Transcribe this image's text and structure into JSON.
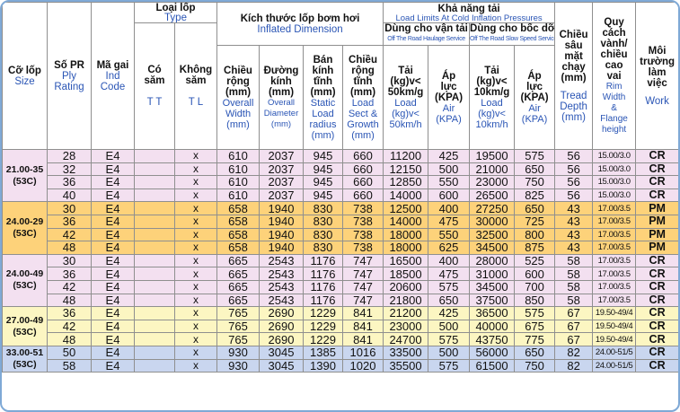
{
  "header": {
    "size": {
      "vi": "Cỡ lốp",
      "en": "Size"
    },
    "ply": {
      "vi": "Số PR",
      "en1": "Ply",
      "en2": "Rating"
    },
    "ind": {
      "vi": "Mã gai",
      "en1": "Ind",
      "en2": "Code"
    },
    "type": {
      "vi": "Loại lốp",
      "en": "Type"
    },
    "tube": {
      "vi1": "Có",
      "vi2": "săm",
      "en": "T T"
    },
    "tubeless": {
      "vi1": "Không",
      "vi2": "săm",
      "en": "T L"
    },
    "dimension": {
      "vi": "Kích thước lốp bơm hơi",
      "en": "Inflated Dimension"
    },
    "width": {
      "vi1": "Chiều",
      "vi2": "rộng",
      "unit": "(mm)",
      "en1": "Overall",
      "en2": "Width",
      "en3": "(mm)"
    },
    "diameter": {
      "vi1": "Đường",
      "vi2": "kính",
      "unit": "(mm)",
      "en1": "Overall",
      "en2": "Diameter",
      "en3": "(mm)"
    },
    "radius": {
      "vi1": "Bán",
      "vi2": "kính",
      "vi3": "tĩnh",
      "unit": "(mm)",
      "en1": "Static",
      "en2": "Load",
      "en3": "radius",
      "en4": "(mm)"
    },
    "growth": {
      "vi1": "Chiều",
      "vi2": "rộng",
      "vi3": "tĩnh",
      "unit": "(mm)",
      "en1": "Load",
      "en2": "Sect &",
      "en3": "Growth",
      "en4": "(mm)"
    },
    "capacity": {
      "vi": "Khả năng tải",
      "en": "Load Limits At Cold Inflation Pressures"
    },
    "haulage": {
      "vi": "Dùng cho vận tải",
      "en": "Off The Road Haulage Service"
    },
    "slow": {
      "vi": "Dùng cho bốc dỡ",
      "en": "Off The Road Slow Speed Service"
    },
    "load_h": {
      "vi1": "Tải",
      "vi2": "(kg)v<",
      "vi3": "50km/g",
      "en1": "Load",
      "en2": "(kg)v<",
      "en3": "50km/h"
    },
    "air_h": {
      "vi1": "Áp",
      "vi2": "lực",
      "vi3": "(KPA)",
      "en1": "Air",
      "en2": "(KPA)"
    },
    "load_s": {
      "vi1": "Tải",
      "vi2": "(kg)v<",
      "vi3": "10km/g",
      "en1": "Load",
      "en2": "(kg)v<",
      "en3": "10km/h"
    },
    "air_s": {
      "vi1": "Áp",
      "vi2": "lực",
      "vi3": "(KPA)",
      "en1": "Air",
      "en2": "(KPA)"
    },
    "tread": {
      "vi1": "Chiều",
      "vi2": "sâu",
      "vi3": "mặt",
      "vi4": "chạy",
      "unit": "(mm)",
      "en1": "Tread",
      "en2": "Depth",
      "en3": "(mm)"
    },
    "rim": {
      "vi1": "Quy",
      "vi2": "cách",
      "vi3": "vành/",
      "vi4": "chiều",
      "vi5": "cao",
      "vi6": "vai",
      "en1": "Rim",
      "en2": "Width",
      "en3": "&",
      "en4": "Flange",
      "en5": "height"
    },
    "work": {
      "vi1": "Môi",
      "vi2": "trường",
      "vi3": "làm",
      "vi4": "việc",
      "en": "Work"
    }
  },
  "groups": [
    {
      "size": "21.00-35",
      "code": "(53C)",
      "color": "#f3e0f0",
      "rows": [
        {
          "pr": "28",
          "ind": "E4",
          "tl": "x",
          "w": "610",
          "d": "2037",
          "r": "945",
          "g": "660",
          "lh": "11200",
          "ah": "425",
          "ls": "19500",
          "as": "575",
          "tread": "56",
          "rim": "15.00/3.0",
          "work": "CR"
        },
        {
          "pr": "32",
          "ind": "E4",
          "tl": "x",
          "w": "610",
          "d": "2037",
          "r": "945",
          "g": "660",
          "lh": "12150",
          "ah": "500",
          "ls": "21000",
          "as": "650",
          "tread": "56",
          "rim": "15.00/3.0",
          "work": "CR"
        },
        {
          "pr": "36",
          "ind": "E4",
          "tl": "x",
          "w": "610",
          "d": "2037",
          "r": "945",
          "g": "660",
          "lh": "12850",
          "ah": "550",
          "ls": "23000",
          "as": "750",
          "tread": "56",
          "rim": "15.00/3.0",
          "work": "CR"
        },
        {
          "pr": "40",
          "ind": "E4",
          "tl": "x",
          "w": "610",
          "d": "2037",
          "r": "945",
          "g": "660",
          "lh": "14000",
          "ah": "600",
          "ls": "26500",
          "as": "825",
          "tread": "56",
          "rim": "15.00/3.0",
          "work": "CR"
        }
      ]
    },
    {
      "size": "24.00-29",
      "code": "(53C)",
      "color": "#fdd27a",
      "rows": [
        {
          "pr": "30",
          "ind": "E4",
          "tl": "x",
          "w": "658",
          "d": "1940",
          "r": "830",
          "g": "738",
          "lh": "12500",
          "ah": "400",
          "ls": "27250",
          "as": "650",
          "tread": "43",
          "rim": "17.00/3.5",
          "work": "PM"
        },
        {
          "pr": "36",
          "ind": "E4",
          "tl": "x",
          "w": "658",
          "d": "1940",
          "r": "830",
          "g": "738",
          "lh": "14000",
          "ah": "475",
          "ls": "30000",
          "as": "725",
          "tread": "43",
          "rim": "17.00/3.5",
          "work": "PM"
        },
        {
          "pr": "42",
          "ind": "E4",
          "tl": "x",
          "w": "658",
          "d": "1940",
          "r": "830",
          "g": "738",
          "lh": "18000",
          "ah": "550",
          "ls": "32500",
          "as": "800",
          "tread": "43",
          "rim": "17.00/3.5",
          "work": "PM"
        },
        {
          "pr": "48",
          "ind": "E4",
          "tl": "x",
          "w": "658",
          "d": "1940",
          "r": "830",
          "g": "738",
          "lh": "18000",
          "ah": "625",
          "ls": "34500",
          "as": "875",
          "tread": "43",
          "rim": "17.00/3.5",
          "work": "PM"
        }
      ]
    },
    {
      "size": "24.00-49",
      "code": "(53C)",
      "color": "#f3e0f0",
      "rows": [
        {
          "pr": "30",
          "ind": "E4",
          "tl": "x",
          "w": "665",
          "d": "2543",
          "r": "1176",
          "g": "747",
          "lh": "16500",
          "ah": "400",
          "ls": "28000",
          "as": "525",
          "tread": "58",
          "rim": "17.00/3.5",
          "work": "CR"
        },
        {
          "pr": "36",
          "ind": "E4",
          "tl": "x",
          "w": "665",
          "d": "2543",
          "r": "1176",
          "g": "747",
          "lh": "18500",
          "ah": "475",
          "ls": "31000",
          "as": "600",
          "tread": "58",
          "rim": "17.00/3.5",
          "work": "CR"
        },
        {
          "pr": "42",
          "ind": "E4",
          "tl": "x",
          "w": "665",
          "d": "2543",
          "r": "1176",
          "g": "747",
          "lh": "20600",
          "ah": "575",
          "ls": "34500",
          "as": "700",
          "tread": "58",
          "rim": "17.00/3.5",
          "work": "CR"
        },
        {
          "pr": "48",
          "ind": "E4",
          "tl": "x",
          "w": "665",
          "d": "2543",
          "r": "1176",
          "g": "747",
          "lh": "21800",
          "ah": "650",
          "ls": "37500",
          "as": "850",
          "tread": "58",
          "rim": "17.00/3.5",
          "work": "CR"
        }
      ]
    },
    {
      "size": "27.00-49",
      "code": "(53C)",
      "color": "#fcf6c2",
      "rows": [
        {
          "pr": "36",
          "ind": "E4",
          "tl": "x",
          "w": "765",
          "d": "2690",
          "r": "1229",
          "g": "841",
          "lh": "21200",
          "ah": "425",
          "ls": "36500",
          "as": "575",
          "tread": "67",
          "rim": "19.50-49/4",
          "work": "CR"
        },
        {
          "pr": "42",
          "ind": "E4",
          "tl": "x",
          "w": "765",
          "d": "2690",
          "r": "1229",
          "g": "841",
          "lh": "23000",
          "ah": "500",
          "ls": "40000",
          "as": "675",
          "tread": "67",
          "rim": "19.50-49/4",
          "work": "CR"
        },
        {
          "pr": "48",
          "ind": "E4",
          "tl": "x",
          "w": "765",
          "d": "2690",
          "r": "1229",
          "g": "841",
          "lh": "24700",
          "ah": "575",
          "ls": "43750",
          "as": "775",
          "tread": "67",
          "rim": "19.50-49/4",
          "work": "CR"
        }
      ]
    },
    {
      "size": "33.00-51",
      "code": "(53C)",
      "color": "#c9d6ef",
      "rows": [
        {
          "pr": "50",
          "ind": "E4",
          "tl": "x",
          "w": "930",
          "d": "3045",
          "r": "1385",
          "g": "1016",
          "lh": "33500",
          "ah": "500",
          "ls": "56000",
          "as": "650",
          "tread": "82",
          "rim": "24.00-51/5",
          "work": "CR"
        },
        {
          "pr": "58",
          "ind": "E4",
          "tl": "x",
          "w": "930",
          "d": "3045",
          "r": "1390",
          "g": "1020",
          "lh": "35500",
          "ah": "575",
          "ls": "61500",
          "as": "750",
          "tread": "82",
          "rim": "24.00-51/5",
          "work": "CR"
        }
      ]
    }
  ]
}
